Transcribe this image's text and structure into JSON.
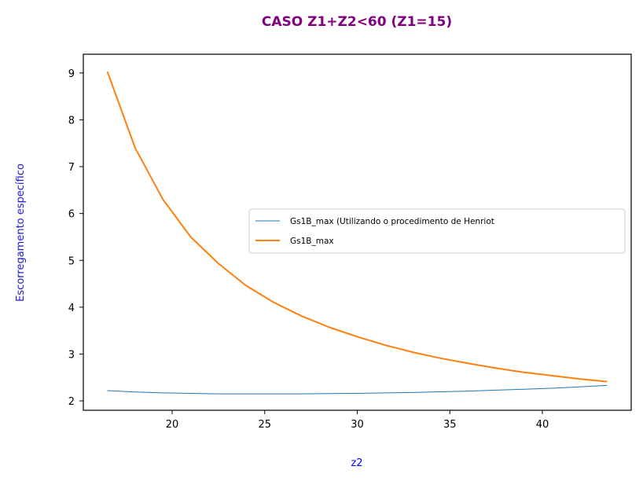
{
  "chart_data": {
    "type": "line",
    "title": "CASO Z1+Z2<60 (Z1=15)",
    "xlabel": "z2",
    "ylabel": "Escorregamento específico",
    "xlim": [
      15.2,
      44.8
    ],
    "ylim": [
      1.8,
      9.4
    ],
    "x_ticks": [
      20,
      25,
      30,
      35,
      40
    ],
    "y_ticks": [
      2,
      3,
      4,
      5,
      6,
      7,
      8,
      9
    ],
    "grid": false,
    "legend_position": "center-right",
    "series": [
      {
        "name": "Gs1B_max (Utilizando o procedimento de Henriot",
        "color": "#1f77b4",
        "line_width": "thin",
        "x": [
          16.5,
          18,
          19.5,
          21,
          22.5,
          24,
          25.5,
          27,
          28.5,
          30,
          31.5,
          33,
          34.5,
          36,
          37.5,
          39,
          40.5,
          42,
          43.5
        ],
        "y": [
          2.22,
          2.19,
          2.17,
          2.16,
          2.15,
          2.15,
          2.15,
          2.15,
          2.155,
          2.16,
          2.17,
          2.18,
          2.195,
          2.21,
          2.23,
          2.25,
          2.27,
          2.3,
          2.33
        ]
      },
      {
        "name": "Gs1B_max",
        "color": "#ff7f0e",
        "line_width": "normal",
        "x": [
          16.5,
          18,
          19.5,
          21,
          22.5,
          24,
          25.5,
          27,
          28.5,
          30,
          31.5,
          33,
          34.5,
          36,
          37.5,
          39,
          40.5,
          42,
          43.5
        ],
        "y": [
          9.03,
          7.4,
          6.3,
          5.5,
          4.93,
          4.46,
          4.1,
          3.81,
          3.57,
          3.37,
          3.19,
          3.04,
          2.91,
          2.8,
          2.7,
          2.61,
          2.54,
          2.47,
          2.41
        ]
      }
    ]
  }
}
